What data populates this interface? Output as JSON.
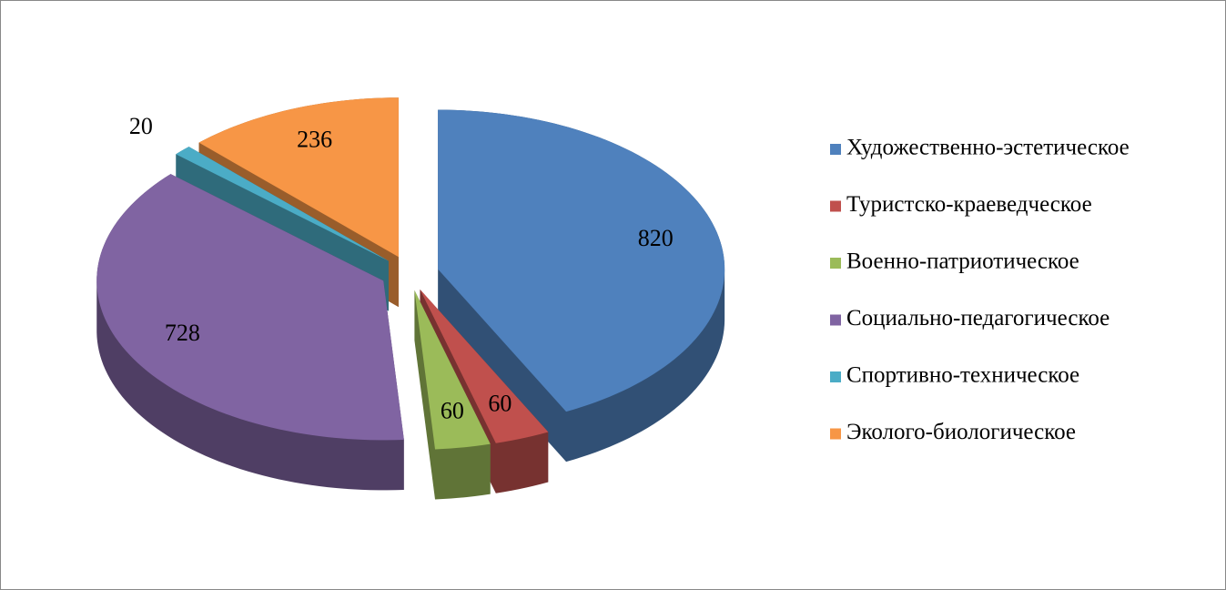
{
  "chart_data": {
    "type": "pie",
    "categories": [
      "Художественно-эстетическое",
      "Туристско-краеведческое",
      "Военно-патриотическое",
      "Социально-педагогическое",
      "Спортивно-техническое",
      "Эколого-биологическое"
    ],
    "values": [
      820,
      60,
      60,
      728,
      20,
      236
    ],
    "colors": [
      "#4f81bd",
      "#c0504d",
      "#9bbb59",
      "#8064a2",
      "#4bacc6",
      "#f79646"
    ],
    "legend": "right"
  }
}
